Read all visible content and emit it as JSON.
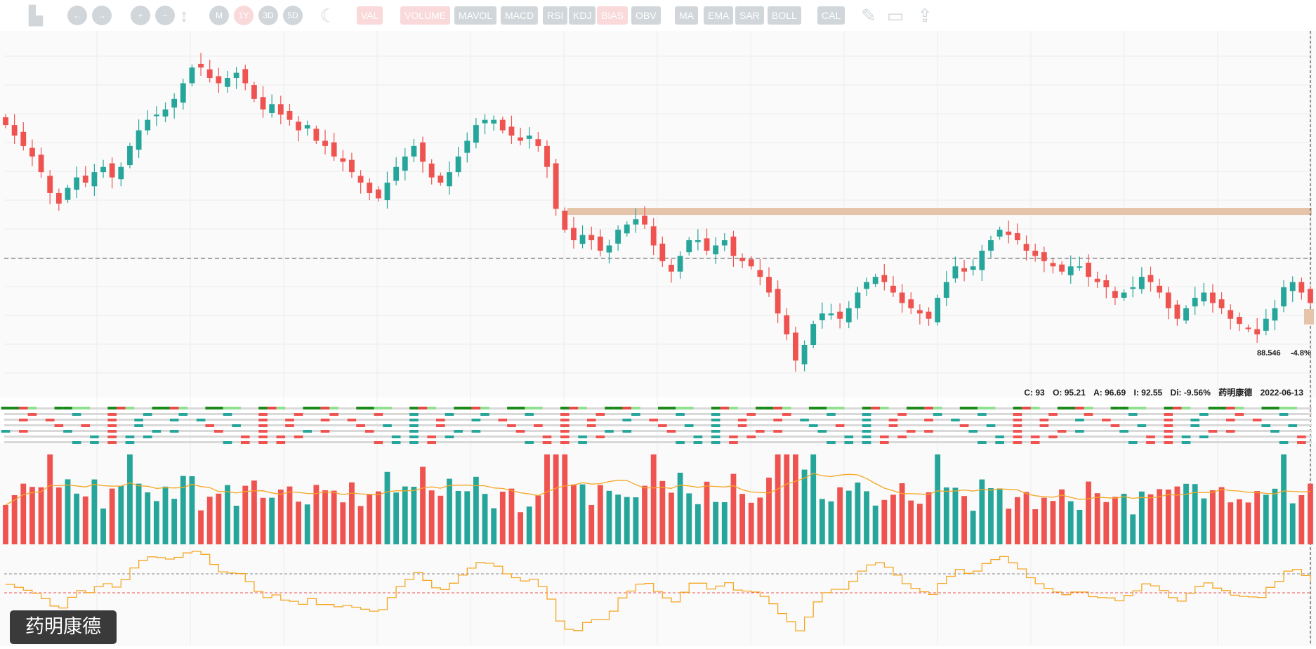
{
  "toolbar": {
    "buttons": [
      {
        "label": "VAL",
        "on": true
      },
      {
        "label": "VOLUME",
        "on": true
      },
      {
        "label": "MAVOL",
        "on": false
      },
      {
        "label": "MACD",
        "on": false
      },
      {
        "label": "RSI",
        "on": false
      },
      {
        "label": "KDJ",
        "on": false
      },
      {
        "label": "BIAS",
        "on": true
      },
      {
        "label": "OBV",
        "on": false
      },
      {
        "label": "MA",
        "on": false
      },
      {
        "label": "EMA",
        "on": false
      },
      {
        "label": "SAR",
        "on": false
      },
      {
        "label": "BOLL",
        "on": false
      },
      {
        "label": "CAL",
        "on": false
      }
    ],
    "ranges": [
      {
        "label": "M",
        "on": false
      },
      {
        "label": "1Y",
        "on": true
      },
      {
        "label": "3D",
        "on": false
      },
      {
        "label": "5D",
        "on": false
      }
    ],
    "icons": [
      "stock-icon",
      "back-arrow-icon",
      "forward-arrow-icon",
      "zoom-in-icon",
      "zoom-out-icon",
      "vertical-resize-icon",
      "dark-mode-moon-icon",
      "draw-tools-icon",
      "screenshot-icon",
      "share-upload-icon"
    ]
  },
  "stock_name": "药明康德",
  "info": {
    "close": "C: 93",
    "open": "O: 95.21",
    "high": "A: 96.69",
    "low": "I: 92.55",
    "change": "Di: -9.56%",
    "name": "药明康德",
    "date": "2022-06-13"
  },
  "price_tags": {
    "level": "88.546",
    "pct": "-4.8%"
  },
  "colors": {
    "up": "#26a69a",
    "down": "#ef5350",
    "resistance": "#e6c4aa",
    "ma": "#f5a623",
    "bias": "#f5a623",
    "gridline": "#ececec",
    "strip_green": "#1b8a1b",
    "strip_red": "#e84a4a"
  },
  "chart_data": {
    "type": "candlestick",
    "title": "药明康德",
    "series_close": [
      114,
      112,
      110,
      108,
      105,
      101,
      99,
      102,
      104,
      103,
      105,
      106,
      104,
      106,
      110,
      113,
      115,
      116,
      117,
      119,
      122,
      125,
      125,
      123,
      122,
      123,
      124,
      122,
      119,
      117,
      118,
      116,
      115,
      113,
      114,
      111,
      110,
      108,
      107,
      105,
      103,
      101,
      100,
      103,
      106,
      108,
      110,
      107,
      104,
      103,
      105,
      108,
      111,
      114,
      115,
      115,
      113,
      112,
      111,
      112,
      110,
      106,
      98,
      94,
      92,
      93,
      92,
      90,
      91,
      94,
      95,
      96,
      95,
      91,
      88,
      86,
      89,
      92,
      92,
      90,
      91,
      92,
      89,
      88,
      87,
      85,
      82,
      78,
      74,
      69,
      72,
      76,
      78,
      78,
      77,
      79,
      82,
      84,
      85,
      84,
      82,
      80,
      79,
      78,
      77,
      81,
      84,
      87,
      86,
      87,
      90,
      92,
      94,
      93,
      92,
      90,
      89,
      88,
      87,
      86,
      87,
      87,
      85,
      84,
      83,
      81,
      82,
      83,
      85,
      84,
      82,
      79,
      77,
      79,
      81,
      82,
      80,
      79,
      77,
      76,
      75,
      74,
      77,
      79,
      83,
      84,
      82,
      80
    ]
  }
}
